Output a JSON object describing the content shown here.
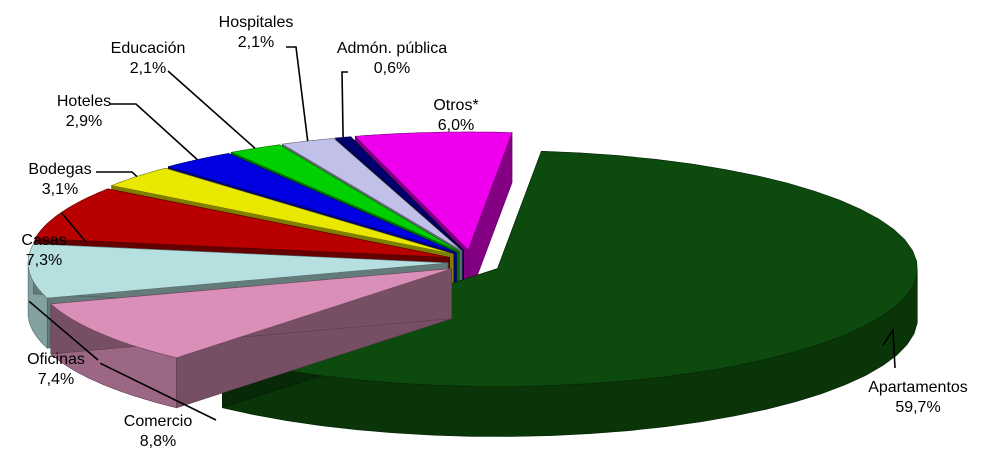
{
  "chart_data": {
    "type": "pie",
    "title": "",
    "categories": [
      "Apartamentos",
      "Comercio",
      "Oficinas",
      "Casas",
      "Bodegas",
      "Hoteles",
      "Educación",
      "Hospitales",
      "Admón. pública",
      "Otros*"
    ],
    "values": [
      59.7,
      8.8,
      7.4,
      7.3,
      3.1,
      2.9,
      2.1,
      2.1,
      0.6,
      6.0
    ],
    "value_labels": [
      "59,7%",
      "8,8%",
      "7,4%",
      "7,3%",
      "3,1%",
      "2,9%",
      "2,1%",
      "2,1%",
      "0,6%",
      "6,0%"
    ],
    "colors": [
      "#0d4a0d",
      "#d98fb8",
      "#b6e0e0",
      "#b80000",
      "#e8e800",
      "#0000e0",
      "#00d000",
      "#c0c0e8",
      "#00006e",
      "#ee00ee"
    ],
    "style": "3d-exploded",
    "legend": "none"
  }
}
